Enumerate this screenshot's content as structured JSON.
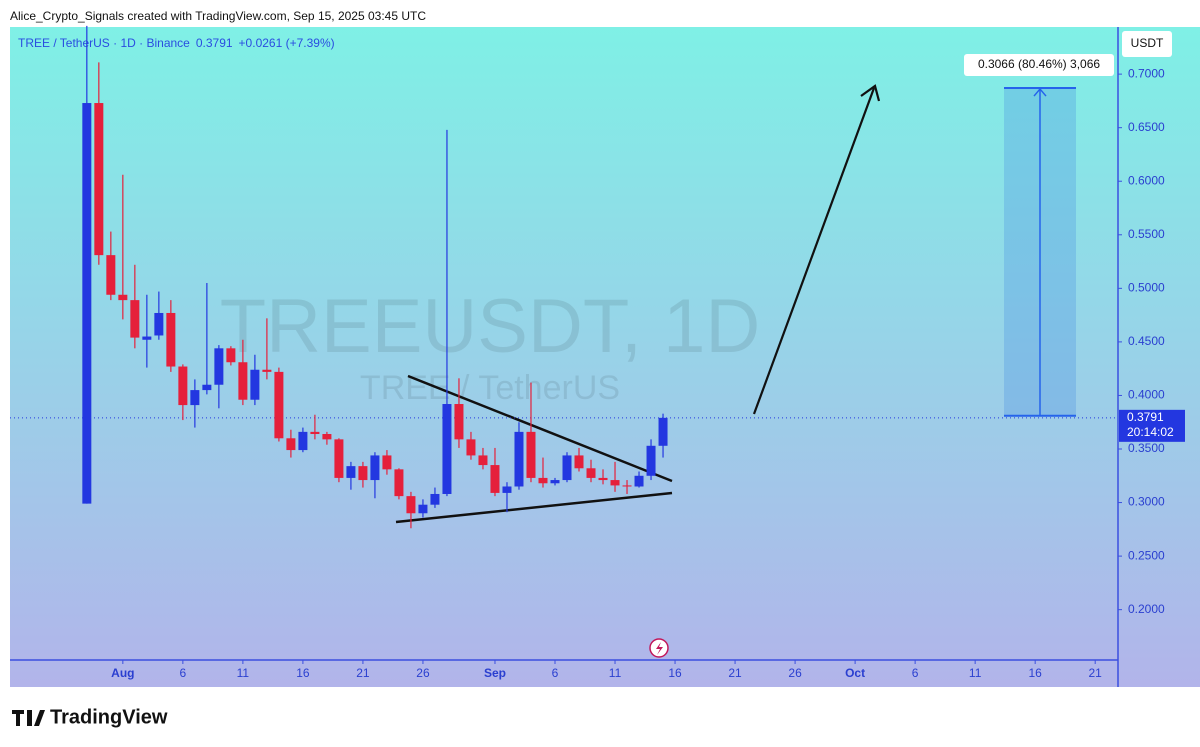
{
  "header": {
    "credit": "Alice_Crypto_Signals created with TradingView.com, Sep 15, 2025 03:45 UTC"
  },
  "chart_data": {
    "type": "candlestick",
    "symbol": "TREE / TetherUS · 1D · Binance",
    "last_price": 0.3791,
    "change": "+0.0261 (+7.39%)",
    "watermark": "TREEUSDT, 1D",
    "watermark_subtitle": "TREE / TetherUS",
    "currency": "USDT",
    "countdown": "20:14:02",
    "up_color": "#2337e0",
    "down_color": "#e5203b",
    "x": [
      -3,
      -2,
      -1,
      0,
      1,
      2,
      3,
      4,
      5,
      6,
      7,
      8,
      9,
      10,
      11,
      12,
      13,
      14,
      15,
      16,
      17,
      18,
      19,
      20,
      21,
      22,
      23,
      24,
      25,
      26,
      27,
      28,
      29,
      30,
      31,
      32,
      33,
      34,
      35,
      36,
      37,
      38,
      39,
      40,
      41,
      42,
      43,
      44,
      45
    ],
    "open": [
      0.299,
      0.673,
      0.531,
      0.494,
      0.489,
      0.452,
      0.456,
      0.477,
      0.427,
      0.391,
      0.405,
      0.41,
      0.444,
      0.431,
      0.396,
      0.424,
      0.422,
      0.36,
      0.349,
      0.366,
      0.364,
      0.359,
      0.323,
      0.334,
      0.321,
      0.344,
      0.331,
      0.306,
      0.29,
      0.298,
      0.308,
      0.392,
      0.359,
      0.344,
      0.335,
      0.309,
      0.315,
      0.366,
      0.323,
      0.318,
      0.321,
      0.344,
      0.332,
      0.323,
      0.321,
      0.316,
      0.315,
      0.325,
      0.353
    ],
    "high": [
      0.745,
      0.711,
      0.553,
      0.606,
      0.522,
      0.494,
      0.497,
      0.489,
      0.429,
      0.415,
      0.505,
      0.447,
      0.446,
      0.452,
      0.438,
      0.472,
      0.426,
      0.368,
      0.37,
      0.382,
      0.366,
      0.36,
      0.338,
      0.338,
      0.347,
      0.349,
      0.332,
      0.31,
      0.303,
      0.314,
      0.648,
      0.416,
      0.366,
      0.351,
      0.351,
      0.319,
      0.375,
      0.412,
      0.342,
      0.323,
      0.347,
      0.351,
      0.34,
      0.331,
      0.338,
      0.321,
      0.329,
      0.359,
      0.383
    ],
    "low": [
      0.299,
      0.522,
      0.489,
      0.471,
      0.444,
      0.426,
      0.452,
      0.422,
      0.377,
      0.37,
      0.401,
      0.388,
      0.428,
      0.391,
      0.391,
      0.415,
      0.357,
      0.342,
      0.347,
      0.359,
      0.354,
      0.319,
      0.312,
      0.314,
      0.304,
      0.326,
      0.303,
      0.276,
      0.286,
      0.295,
      0.306,
      0.351,
      0.34,
      0.331,
      0.306,
      0.291,
      0.312,
      0.319,
      0.314,
      0.316,
      0.319,
      0.329,
      0.319,
      0.317,
      0.31,
      0.308,
      0.314,
      0.321,
      0.342
    ],
    "close": [
      0.673,
      0.531,
      0.494,
      0.489,
      0.454,
      0.455,
      0.477,
      0.427,
      0.391,
      0.405,
      0.41,
      0.444,
      0.431,
      0.396,
      0.424,
      0.422,
      0.36,
      0.349,
      0.366,
      0.364,
      0.359,
      0.323,
      0.334,
      0.321,
      0.344,
      0.331,
      0.306,
      0.29,
      0.298,
      0.308,
      0.392,
      0.359,
      0.344,
      0.335,
      0.309,
      0.315,
      0.366,
      0.323,
      0.318,
      0.321,
      0.344,
      0.332,
      0.323,
      0.321,
      0.316,
      0.315,
      0.325,
      0.353,
      0.3791
    ],
    "xlim": [
      -9.4,
      82.9
    ],
    "xticks": [
      {
        "value": 0,
        "label": "Aug"
      },
      {
        "value": 5,
        "label": "6"
      },
      {
        "value": 10,
        "label": "11"
      },
      {
        "value": 15,
        "label": "16"
      },
      {
        "value": 20,
        "label": "21"
      },
      {
        "value": 25,
        "label": "26"
      },
      {
        "value": 31,
        "label": "Sep"
      },
      {
        "value": 36,
        "label": "6"
      },
      {
        "value": 41,
        "label": "11"
      },
      {
        "value": 46,
        "label": "16"
      },
      {
        "value": 51,
        "label": "21"
      },
      {
        "value": 56,
        "label": "26"
      },
      {
        "value": 61,
        "label": "Oct"
      },
      {
        "value": 66,
        "label": "6"
      },
      {
        "value": 71,
        "label": "11"
      },
      {
        "value": 76,
        "label": "16"
      },
      {
        "value": 81,
        "label": "21"
      }
    ],
    "ylim": [
      0.153,
      0.744
    ],
    "yticks": [
      {
        "value": 0.2,
        "label": "0.2000"
      },
      {
        "value": 0.25,
        "label": "0.2500"
      },
      {
        "value": 0.3,
        "label": "0.3000"
      },
      {
        "value": 0.35,
        "label": "0.3500"
      },
      {
        "value": 0.4,
        "label": "0.4000"
      },
      {
        "value": 0.45,
        "label": "0.4500"
      },
      {
        "value": 0.5,
        "label": "0.5000"
      },
      {
        "value": 0.55,
        "label": "0.5500"
      },
      {
        "value": 0.6,
        "label": "0.6000"
      },
      {
        "value": 0.65,
        "label": "0.6500"
      },
      {
        "value": 0.7,
        "label": "0.7000"
      }
    ],
    "measure": {
      "from": 0.381,
      "to": 0.687,
      "label": "0.3066 (80.46%) 3,066"
    }
  },
  "footer": {
    "brand": "TradingView"
  }
}
